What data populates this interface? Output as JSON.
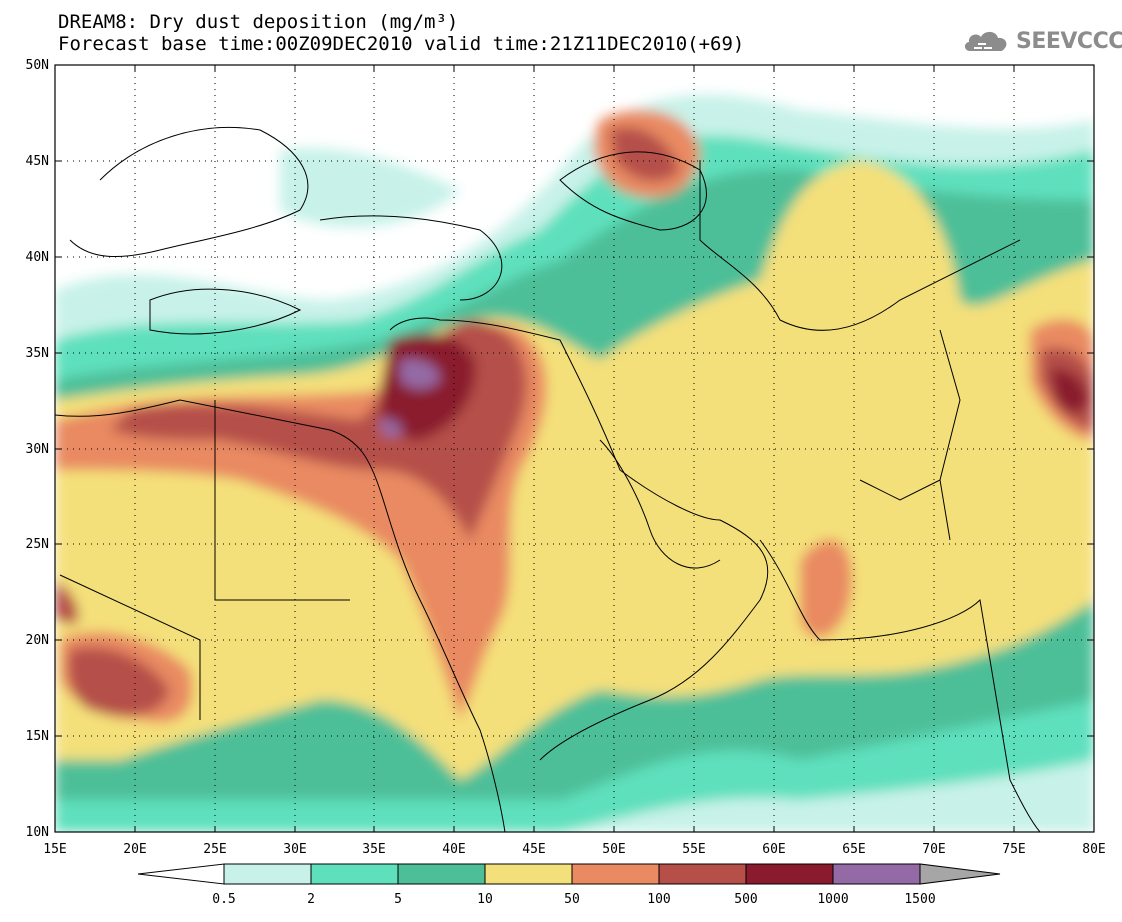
{
  "header": {
    "title": "DREAM8: Dry dust deposition (mg/m³)",
    "subtitle": "Forecast base time:00Z09DEC2010 valid time:21Z11DEC2010(+69)"
  },
  "logo": {
    "text": "SEEVCCC"
  },
  "map": {
    "lon_range": [
      15,
      80
    ],
    "lat_range": [
      10,
      50
    ],
    "x_ticks": [
      "15E",
      "20E",
      "25E",
      "30E",
      "35E",
      "40E",
      "45E",
      "50E",
      "55E",
      "60E",
      "65E",
      "70E",
      "75E",
      "80E"
    ],
    "y_ticks": [
      "10N",
      "15N",
      "20N",
      "25N",
      "30N",
      "35N",
      "40N",
      "45N",
      "50N"
    ],
    "grid": "dotted"
  },
  "colorbar": {
    "labels": [
      "0.5",
      "2",
      "5",
      "10",
      "50",
      "100",
      "500",
      "1000",
      "1500"
    ],
    "colors": [
      "#ffffff",
      "#c8f2e9",
      "#5fe0bd",
      "#4dbf98",
      "#f4e07a",
      "#e98a62",
      "#b54f48",
      "#8a1b2e",
      "#946aa6",
      "#a6a6a6"
    ]
  }
}
